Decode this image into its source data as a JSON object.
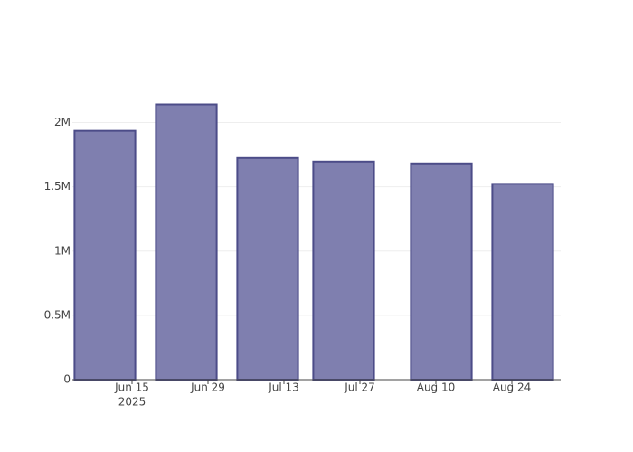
{
  "chart_data": {
    "type": "bar",
    "x": [
      "2025-06-10",
      "2025-06-25",
      "2025-07-10",
      "2025-07-24",
      "2025-08-11",
      "2025-08-26"
    ],
    "values": [
      1936000,
      2141000,
      1724000,
      1696000,
      1682000,
      1523000
    ],
    "color": "#7f7faf",
    "edge_color": "#4c4c88",
    "xlim": [
      "2025-06-04",
      "2025-09-02"
    ],
    "xticks": [
      {
        "value": "2025-06-15",
        "label": "Jun 15"
      },
      {
        "value": "2025-06-29",
        "label": "Jun 29"
      },
      {
        "value": "2025-07-13",
        "label": "Jul 13"
      },
      {
        "value": "2025-07-27",
        "label": "Jul 27"
      },
      {
        "value": "2025-08-10",
        "label": "Aug 10"
      },
      {
        "value": "2025-08-24",
        "label": "Aug 24"
      }
    ],
    "x_year": "2025",
    "ylim": [
      0,
      2250000
    ],
    "yticks": [
      0,
      {
        "value": 500000,
        "label": "0.5M"
      },
      {
        "value": 1000000,
        "label": "1M"
      },
      {
        "value": 1500000,
        "label": "1.5M"
      },
      {
        "value": 2000000,
        "label": "2M"
      }
    ],
    "grid": true
  }
}
